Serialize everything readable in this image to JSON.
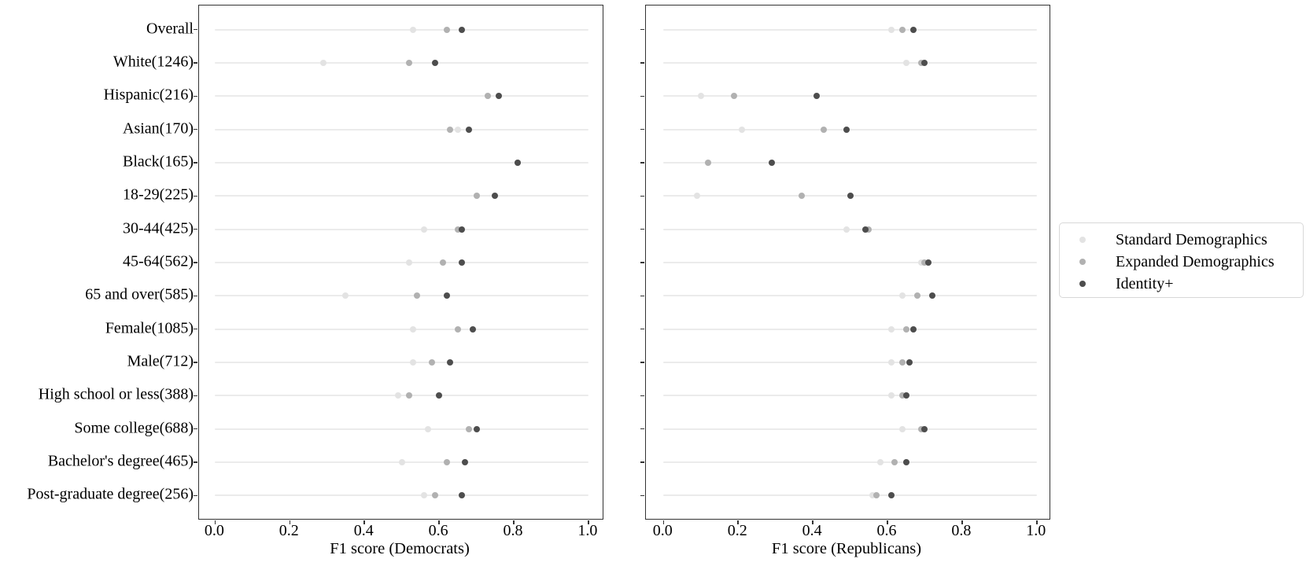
{
  "chart_data": {
    "type": "scatter",
    "title": "",
    "categories": [
      "Overall",
      "White(1246)",
      "Hispanic(216)",
      "Asian(170)",
      "Black(165)",
      "18-29(225)",
      "30-44(425)",
      "45-64(562)",
      "65 and over(585)",
      "Female(1085)",
      "Male(712)",
      "High school or less(388)",
      "Some college(688)",
      "Bachelor's degree(465)",
      "Post-graduate degree(256)"
    ],
    "series_names": [
      "Standard Demographics",
      "Expanded Demographics",
      "Identity+"
    ],
    "series_colors": [
      "#e3e3e3",
      "#b1b1b1",
      "#4d4d4d"
    ],
    "xticks": [
      0.0,
      0.2,
      0.4,
      0.6,
      0.8,
      1.0
    ],
    "xlim": [
      -0.043,
      1.038
    ],
    "grid": "horizontal",
    "legend_position": "right",
    "panels": [
      {
        "xlabel": "F1 score (Democrats)",
        "series": [
          {
            "name": "Standard Demographics",
            "values": [
              0.53,
              0.29,
              0.73,
              0.65,
              0.81,
              0.7,
              0.56,
              0.52,
              0.35,
              0.53,
              0.53,
              0.49,
              0.57,
              0.5,
              0.56
            ]
          },
          {
            "name": "Expanded Demographics",
            "values": [
              0.62,
              0.52,
              0.73,
              0.63,
              0.81,
              0.7,
              0.65,
              0.61,
              0.54,
              0.65,
              0.58,
              0.52,
              0.68,
              0.62,
              0.59
            ]
          },
          {
            "name": "Identity+",
            "values": [
              0.66,
              0.59,
              0.76,
              0.68,
              0.81,
              0.75,
              0.66,
              0.66,
              0.62,
              0.69,
              0.63,
              0.6,
              0.7,
              0.67,
              0.66
            ]
          }
        ]
      },
      {
        "xlabel": "F1 score (Republicans)",
        "series": [
          {
            "name": "Standard Demographics",
            "values": [
              0.61,
              0.65,
              0.1,
              0.21,
              0.12,
              0.09,
              0.49,
              0.69,
              0.64,
              0.61,
              0.61,
              0.61,
              0.64,
              0.58,
              0.56
            ]
          },
          {
            "name": "Expanded Demographics",
            "values": [
              0.64,
              0.69,
              0.19,
              0.43,
              0.12,
              0.37,
              0.55,
              0.7,
              0.68,
              0.65,
              0.64,
              0.64,
              0.69,
              0.62,
              0.57
            ]
          },
          {
            "name": "Identity+",
            "values": [
              0.67,
              0.7,
              0.41,
              0.49,
              0.29,
              0.5,
              0.54,
              0.71,
              0.72,
              0.67,
              0.66,
              0.65,
              0.7,
              0.65,
              0.61
            ]
          }
        ]
      }
    ]
  }
}
